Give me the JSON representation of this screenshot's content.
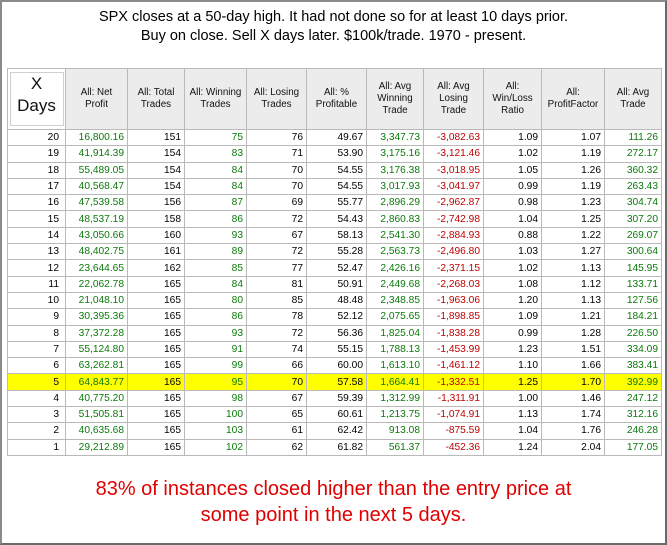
{
  "title_lines": [
    "SPX closes at a 50-day high.  It had not done so for at least 10 days prior.",
    "Buy on close. Sell X days later.  $100k/trade. 1970 - present."
  ],
  "headers": [
    "X Days",
    "All: Net Profit",
    "All: Total Trades",
    "All: Winning Trades",
    "All: Losing Trades",
    "All: % Profitable",
    "All: Avg Winning Trade",
    "All: Avg Losing Trade",
    "All: Win/Loss Ratio",
    "All: ProfitFactor",
    "All: Avg Trade"
  ],
  "rows": [
    [
      "20",
      "16,800.16",
      "151",
      "75",
      "76",
      "49.67",
      "3,347.73",
      "-3,082.63",
      "1.09",
      "1.07",
      "111.26"
    ],
    [
      "19",
      "41,914.39",
      "154",
      "83",
      "71",
      "53.90",
      "3,175.16",
      "-3,121.46",
      "1.02",
      "1.19",
      "272.17"
    ],
    [
      "18",
      "55,489.05",
      "154",
      "84",
      "70",
      "54.55",
      "3,176.38",
      "-3,018.95",
      "1.05",
      "1.26",
      "360.32"
    ],
    [
      "17",
      "40,568.47",
      "154",
      "84",
      "70",
      "54.55",
      "3,017.93",
      "-3,041.97",
      "0.99",
      "1.19",
      "263.43"
    ],
    [
      "16",
      "47,539.58",
      "156",
      "87",
      "69",
      "55.77",
      "2,896.29",
      "-2,962.87",
      "0.98",
      "1.23",
      "304.74"
    ],
    [
      "15",
      "48,537.19",
      "158",
      "86",
      "72",
      "54.43",
      "2,860.83",
      "-2,742.98",
      "1.04",
      "1.25",
      "307.20"
    ],
    [
      "14",
      "43,050.66",
      "160",
      "93",
      "67",
      "58.13",
      "2,541.30",
      "-2,884.93",
      "0.88",
      "1.22",
      "269.07"
    ],
    [
      "13",
      "48,402.75",
      "161",
      "89",
      "72",
      "55.28",
      "2,563.73",
      "-2,496.80",
      "1.03",
      "1.27",
      "300.64"
    ],
    [
      "12",
      "23,644.65",
      "162",
      "85",
      "77",
      "52.47",
      "2,426.16",
      "-2,371.15",
      "1.02",
      "1.13",
      "145.95"
    ],
    [
      "11",
      "22,062.78",
      "165",
      "84",
      "81",
      "50.91",
      "2,449.68",
      "-2,268.03",
      "1.08",
      "1.12",
      "133.71"
    ],
    [
      "10",
      "21,048.10",
      "165",
      "80",
      "85",
      "48.48",
      "2,348.85",
      "-1,963.06",
      "1.20",
      "1.13",
      "127.56"
    ],
    [
      "9",
      "30,395.36",
      "165",
      "86",
      "78",
      "52.12",
      "2,075.65",
      "-1,898.85",
      "1.09",
      "1.21",
      "184.21"
    ],
    [
      "8",
      "37,372.28",
      "165",
      "93",
      "72",
      "56.36",
      "1,825.04",
      "-1,838.28",
      "0.99",
      "1.28",
      "226.50"
    ],
    [
      "7",
      "55,124.80",
      "165",
      "91",
      "74",
      "55.15",
      "1,788.13",
      "-1,453.99",
      "1.23",
      "1.51",
      "334.09"
    ],
    [
      "6",
      "63,262.81",
      "165",
      "99",
      "66",
      "60.00",
      "1,613.10",
      "-1,461.12",
      "1.10",
      "1.66",
      "383.41"
    ],
    [
      "5",
      "64,843.77",
      "165",
      "95",
      "70",
      "57.58",
      "1,664.41",
      "-1,332.51",
      "1.25",
      "1.70",
      "392.99"
    ],
    [
      "4",
      "40,775.20",
      "165",
      "98",
      "67",
      "59.39",
      "1,312.99",
      "-1,311.91",
      "1.00",
      "1.46",
      "247.12"
    ],
    [
      "3",
      "51,505.81",
      "165",
      "100",
      "65",
      "60.61",
      "1,213.75",
      "-1,074.91",
      "1.13",
      "1.74",
      "312.16"
    ],
    [
      "2",
      "40,635.68",
      "165",
      "103",
      "61",
      "62.42",
      "913.08",
      "-875.59",
      "1.04",
      "1.76",
      "246.28"
    ],
    [
      "1",
      "29,212.89",
      "165",
      "102",
      "62",
      "61.82",
      "561.37",
      "-452.36",
      "1.24",
      "2.04",
      "177.05"
    ]
  ],
  "highlight_row": "5",
  "caption_lines": [
    "83% of instances closed higher than the entry price at",
    "some point in the next 5 days."
  ],
  "colors": {
    "positive": "#0a7a0a",
    "negative": "#c00000",
    "highlight": "#ffff00",
    "caption": "#e00000"
  }
}
